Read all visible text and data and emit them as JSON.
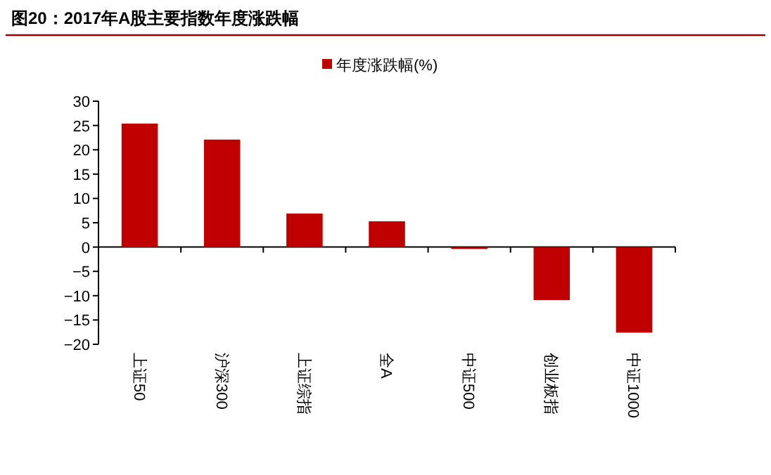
{
  "chart_data": {
    "type": "bar",
    "title": "图20：2017年A股主要指数年度涨跌幅",
    "categories": [
      "上证50",
      "沪深300",
      "上证综指",
      "全A",
      "中证500",
      "创业板指",
      "中证1000"
    ],
    "series": [
      {
        "name": "年度涨跌幅(%)",
        "color": "#c00000",
        "values": [
          25.4,
          22.1,
          6.9,
          5.3,
          -0.4,
          -10.9,
          -17.6
        ]
      }
    ],
    "ylim": [
      -20,
      30
    ],
    "yticks": [
      -20,
      -15,
      -10,
      -5,
      0,
      5,
      10,
      15,
      20,
      25,
      30
    ],
    "legend": "top"
  }
}
